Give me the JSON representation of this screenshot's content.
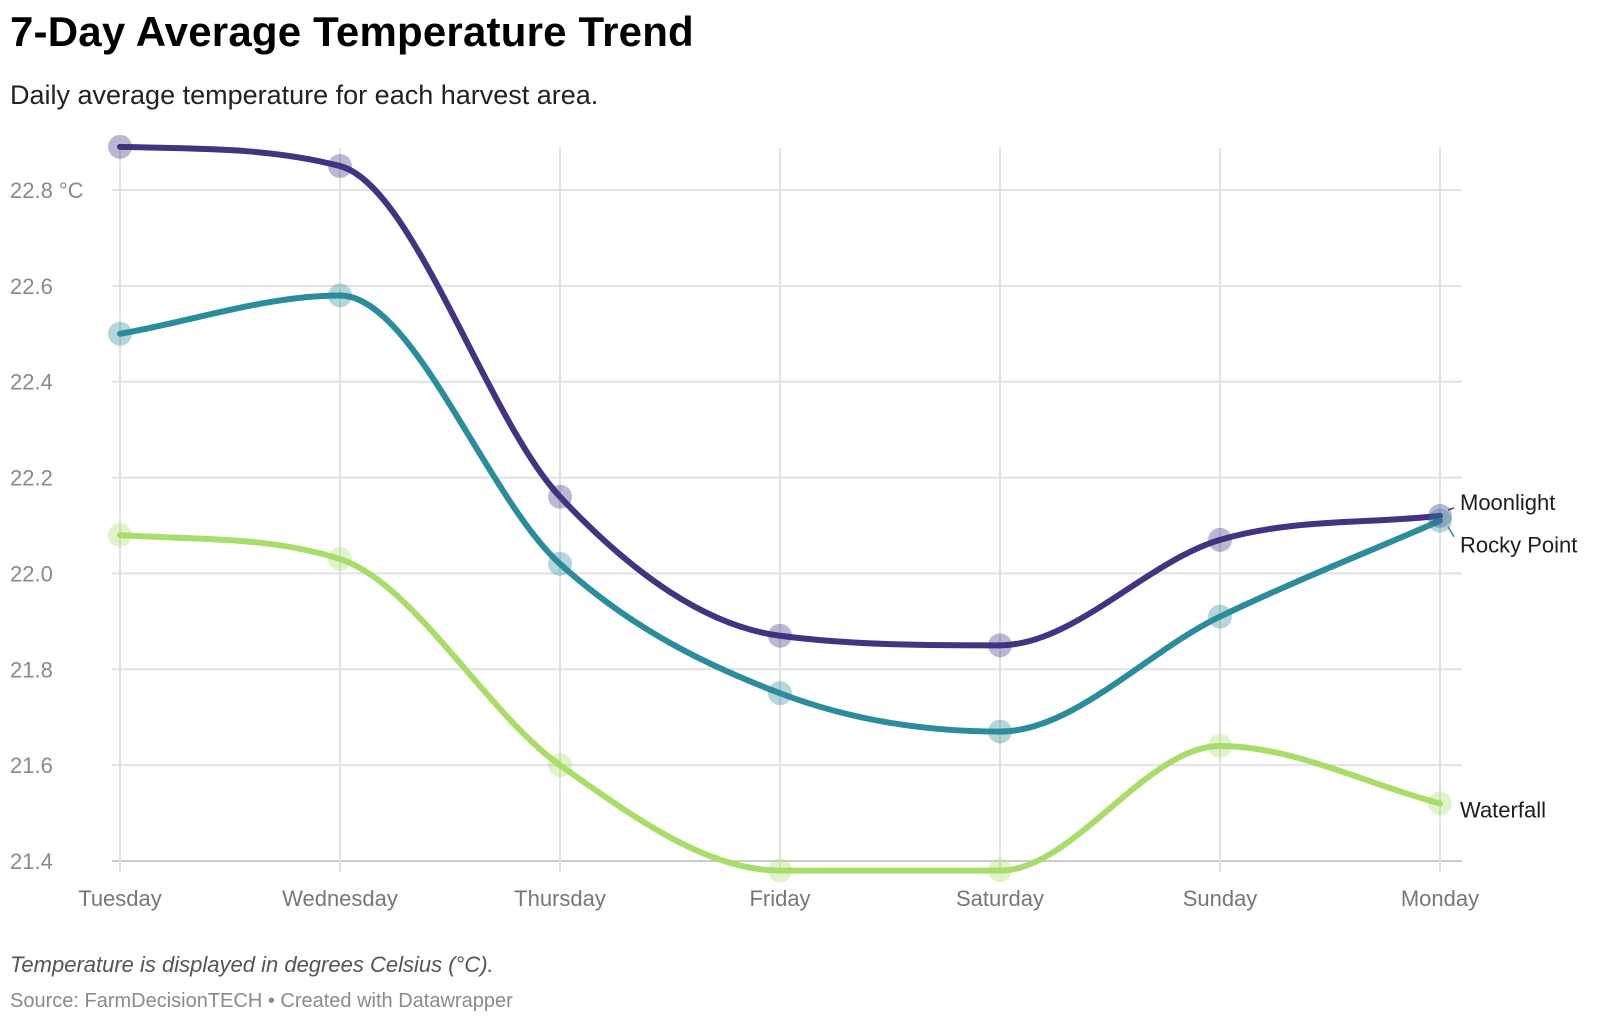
{
  "header": {
    "title": "7-Day Average Temperature Trend",
    "subtitle": "Daily average temperature for each harvest area."
  },
  "footer": {
    "note": "Temperature is displayed in degrees Celsius (°C).",
    "source": "Source: FarmDecisionTECH • Created with Datawrapper"
  },
  "chart_data": {
    "type": "line",
    "categories": [
      "Tuesday",
      "Wednesday",
      "Thursday",
      "Friday",
      "Saturday",
      "Sunday",
      "Monday"
    ],
    "series": [
      {
        "name": "Moonlight",
        "color": "#3f3580",
        "values": [
          22.89,
          22.85,
          22.16,
          21.87,
          21.85,
          22.07,
          22.12
        ]
      },
      {
        "name": "Rocky Point",
        "color": "#2b8c9c",
        "values": [
          22.5,
          22.58,
          22.02,
          21.75,
          21.67,
          21.91,
          22.11
        ]
      },
      {
        "name": "Waterfall",
        "color": "#a9dd6a",
        "values": [
          22.08,
          22.03,
          21.6,
          21.38,
          21.38,
          21.64,
          21.52
        ]
      }
    ],
    "y_ticks": [
      {
        "value": 22.8,
        "label": "22.8 °C"
      },
      {
        "value": 22.6,
        "label": "22.6"
      },
      {
        "value": 22.4,
        "label": "22.4"
      },
      {
        "value": 22.2,
        "label": "22.2"
      },
      {
        "value": 22.0,
        "label": "22.0"
      },
      {
        "value": 21.8,
        "label": "21.8"
      },
      {
        "value": 21.6,
        "label": "21.6"
      },
      {
        "value": 21.4,
        "label": "21.4"
      }
    ],
    "ylim": [
      21.4,
      22.89
    ],
    "grid": true,
    "legend": "direct labels at right end of lines"
  }
}
